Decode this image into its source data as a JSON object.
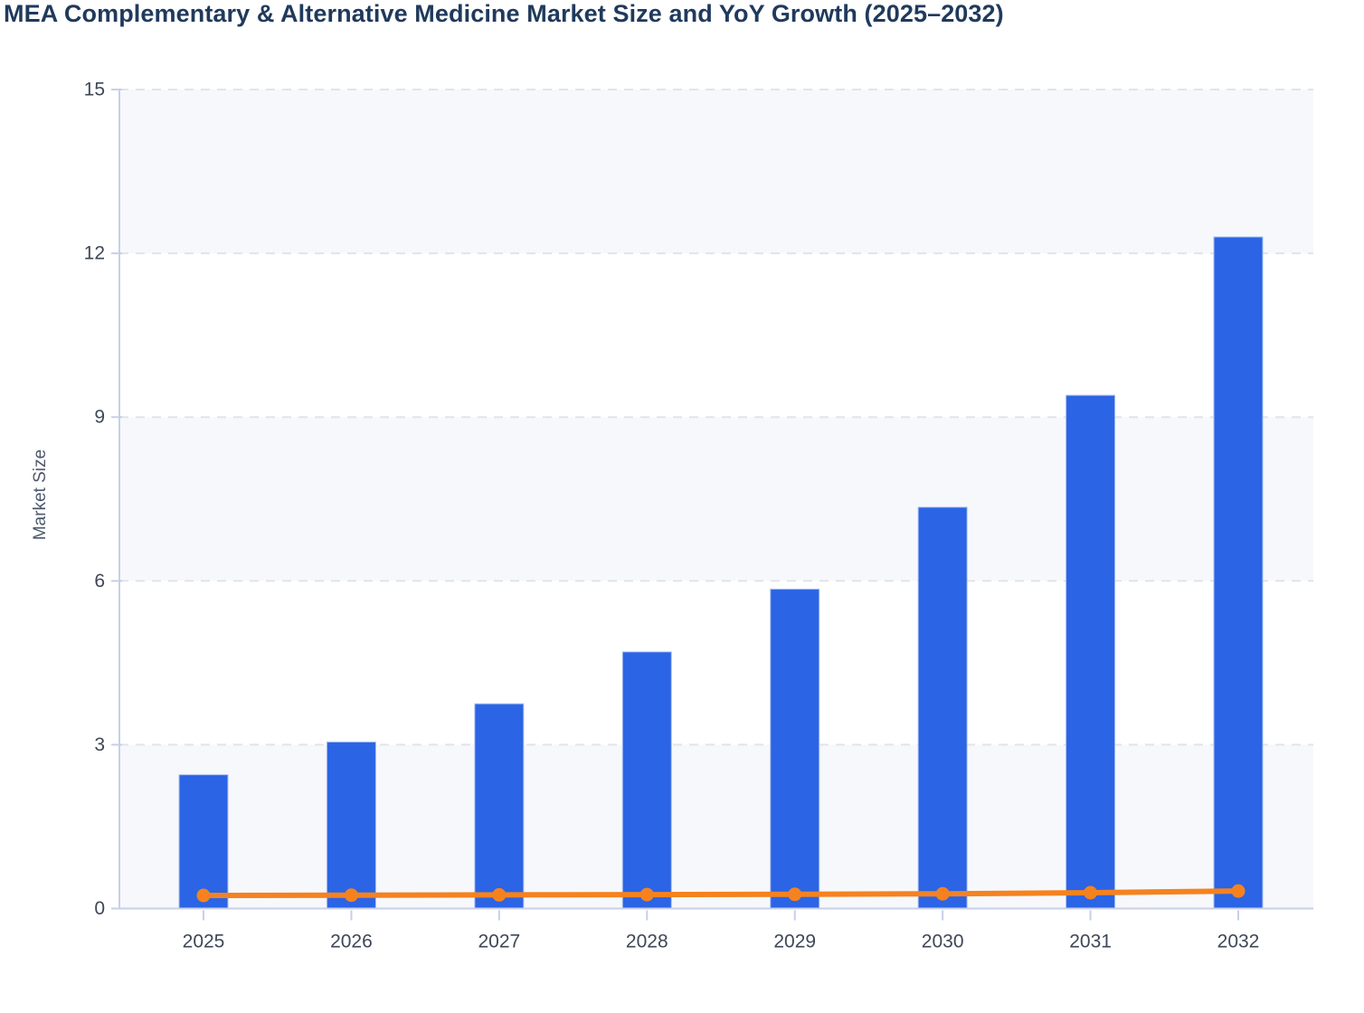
{
  "chart_data": {
    "type": "bar+line",
    "title": "MEA Complementary & Alternative Medicine Market Size and YoY Growth (2025–2032)",
    "categories": [
      "2025",
      "2026",
      "2027",
      "2028",
      "2029",
      "2030",
      "2031",
      "2032"
    ],
    "series": [
      {
        "name": "Market Size",
        "type": "bar",
        "color": "#2b64e4",
        "border_color": "#a8bff2",
        "values": [
          2.45,
          3.05,
          3.75,
          4.7,
          5.85,
          7.35,
          9.4,
          12.3
        ]
      },
      {
        "name": "YoY Growth",
        "type": "line",
        "color": "#f5821f",
        "values": [
          0.24,
          0.245,
          0.25,
          0.255,
          0.26,
          0.27,
          0.29,
          0.32
        ]
      }
    ],
    "xlabel": "",
    "ylabel": "Market Size",
    "ylim": [
      0,
      15
    ],
    "yticks": [
      0,
      3,
      6,
      9,
      12,
      15
    ],
    "grid": "horizontal-dashed",
    "legend_position": "none",
    "band_colors_from_top": [
      "#f7f8fb",
      "#ffffff"
    ],
    "axis_color": "#c7cfe9",
    "gridline_color": "#e2e4e9",
    "tick_label_color": "#3e4757",
    "title_color": "#203a5c"
  }
}
